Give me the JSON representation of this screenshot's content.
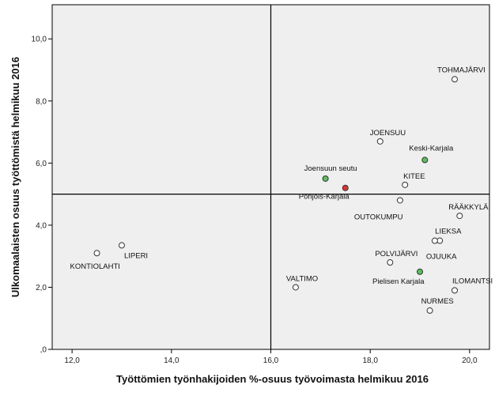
{
  "chart_data": {
    "type": "scatter",
    "title": "",
    "xlabel": "Työttömien työnhakijoiden %-osuus työvoimasta helmikuu 2016",
    "ylabel": "Ulkomaalaisten osuus työttömistä helmikuu 2016",
    "xlim": [
      11.6,
      20.4
    ],
    "ylim": [
      0.0,
      11.1
    ],
    "x_ticks": [
      12,
      14,
      16,
      18,
      20
    ],
    "x_tick_labels": [
      "12,0",
      "14,0",
      "16,0",
      "18,0",
      "20,0"
    ],
    "y_ticks": [
      0,
      2,
      4,
      6,
      8,
      10
    ],
    "y_tick_labels": [
      ",0",
      "2,0",
      "4,0",
      "6,0",
      "8,0",
      "10,0"
    ],
    "grid": false,
    "reference_lines": {
      "x": 16.0,
      "y": 5.0
    },
    "colors": {
      "municipality": "#ffffff",
      "region": "#5cc05c",
      "province": "#e0332f",
      "plot_bg": "#efefef"
    },
    "points": [
      {
        "name": "TOHMAJÄRVI",
        "x": 19.7,
        "y": 8.7,
        "group": "municipality"
      },
      {
        "name": "JOENSUU",
        "x": 18.2,
        "y": 6.7,
        "group": "municipality"
      },
      {
        "name": "Keski-Karjala",
        "x": 19.1,
        "y": 6.1,
        "group": "region"
      },
      {
        "name": "Joensuun seutu",
        "x": 17.1,
        "y": 5.5,
        "group": "region"
      },
      {
        "name": "KITEE",
        "x": 18.7,
        "y": 5.3,
        "group": "municipality"
      },
      {
        "name": "Pohjois-Karjala",
        "x": 17.5,
        "y": 5.2,
        "group": "province"
      },
      {
        "name": "OUTOKUMPU",
        "x": 18.6,
        "y": 4.8,
        "group": "municipality"
      },
      {
        "name": "RÄÄKKYLÄ",
        "x": 19.8,
        "y": 4.3,
        "group": "municipality"
      },
      {
        "name": "LIEKSA",
        "x": 19.4,
        "y": 3.5,
        "group": "municipality"
      },
      {
        "name": "OJUUKA",
        "x": 19.3,
        "y": 3.5,
        "group": "municipality"
      },
      {
        "name": "POLVIJÄRVI",
        "x": 18.4,
        "y": 2.8,
        "group": "municipality"
      },
      {
        "name": "Pielisen Karjala",
        "x": 19.0,
        "y": 2.5,
        "group": "region"
      },
      {
        "name": "ILOMANTSI",
        "x": 19.7,
        "y": 1.9,
        "group": "municipality"
      },
      {
        "name": "NURMES",
        "x": 19.2,
        "y": 1.25,
        "group": "municipality"
      },
      {
        "name": "VALTIMO",
        "x": 16.5,
        "y": 2.0,
        "group": "municipality"
      },
      {
        "name": "LIPERI",
        "x": 13.0,
        "y": 3.35,
        "group": "municipality"
      },
      {
        "name": "KONTIOLAHTI",
        "x": 12.5,
        "y": 3.1,
        "group": "municipality"
      }
    ]
  }
}
